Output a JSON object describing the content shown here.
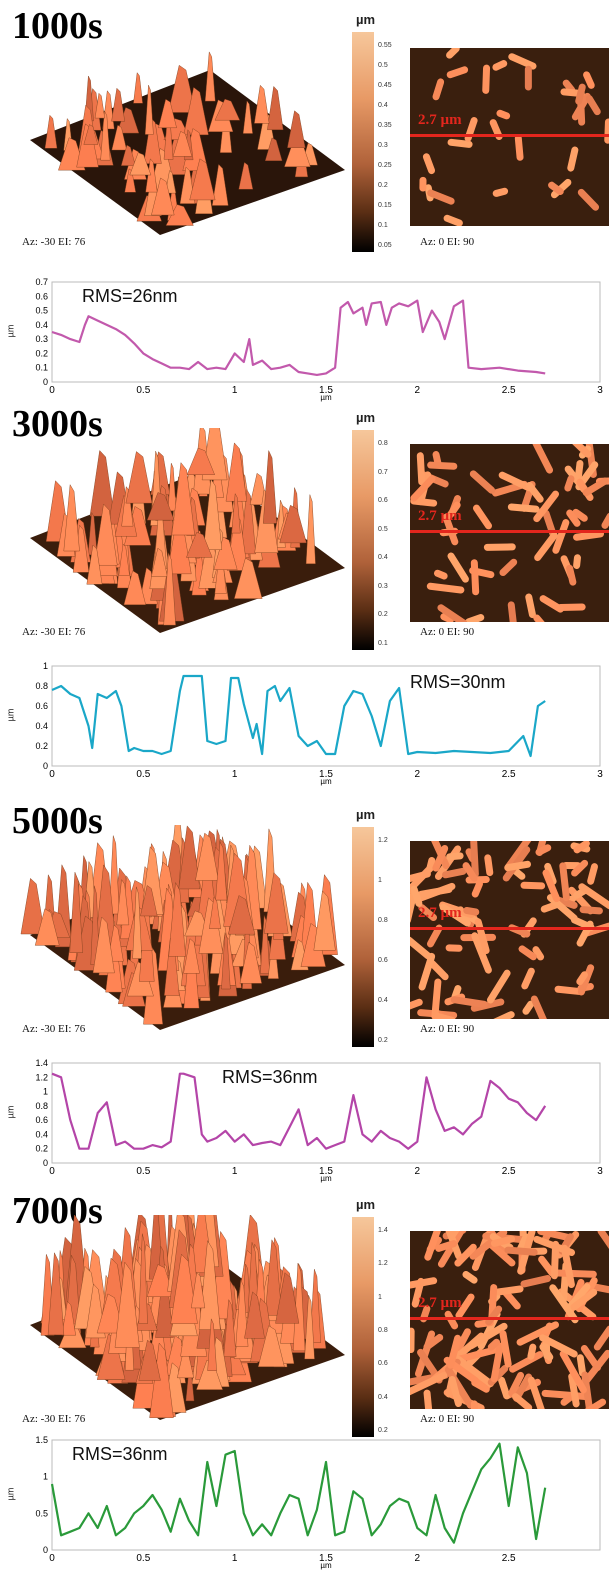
{
  "panels": [
    {
      "time": "1000s",
      "view3d": "Az: -30 EI: 76",
      "view2d": "Az: 0 EI: 90",
      "unit": "µm",
      "colorbar_ticks": [
        "0.55",
        "0.5",
        "0.45",
        "0.4",
        "0.35",
        "0.3",
        "0.25",
        "0.2",
        "0.15",
        "0.1",
        "0.05"
      ],
      "line_label": "2.7 µm",
      "rms": "RMS=26nm",
      "profile_color": "#c259ac",
      "profile": {
        "x_ticks": [
          "0",
          "0.5",
          "1",
          "1.5",
          "2",
          "2.5",
          "3"
        ],
        "y_ticks": [
          "0.7",
          "0.6",
          "0.5",
          "0.4",
          "0.3",
          "0.2",
          "0.1",
          "0"
        ],
        "xlabel": "µm",
        "ylabel": "µm",
        "ylim": [
          0,
          0.7
        ],
        "xlim": [
          0,
          3
        ]
      }
    },
    {
      "time": "3000s",
      "view3d": "Az: -30 EI: 76",
      "view2d": "Az: 0 EI: 90",
      "unit": "µm",
      "colorbar_ticks": [
        "0.8",
        "0.7",
        "0.6",
        "0.5",
        "0.4",
        "0.3",
        "0.2",
        "0.1"
      ],
      "line_label": "2.7 µm",
      "rms": "RMS=30nm",
      "profile_color": "#1aa7c8",
      "profile": {
        "x_ticks": [
          "0",
          "0.5",
          "1",
          "1.5",
          "2",
          "2.5",
          "3"
        ],
        "y_ticks": [
          "1",
          "0.8",
          "0.6",
          "0.4",
          "0.2",
          "0"
        ],
        "xlabel": "µm",
        "ylabel": "µm",
        "ylim": [
          0,
          1
        ],
        "xlim": [
          0,
          3
        ]
      }
    },
    {
      "time": "5000s",
      "view3d": "Az: -30 EI: 76",
      "view2d": "Az: 0 EI: 90",
      "unit": "µm",
      "colorbar_ticks": [
        "1.2",
        "1",
        "0.8",
        "0.6",
        "0.4",
        "0.2"
      ],
      "line_label": "2.7 µm",
      "rms": "RMS=36nm",
      "profile_color": "#b445a8",
      "profile": {
        "x_ticks": [
          "0",
          "0.5",
          "1",
          "1.5",
          "2",
          "2.5",
          "3"
        ],
        "y_ticks": [
          "1.4",
          "1.2",
          "1",
          "0.8",
          "0.6",
          "0.4",
          "0.2",
          "0"
        ],
        "xlabel": "µm",
        "ylabel": "µm",
        "ylim": [
          0,
          1.4
        ],
        "xlim": [
          0,
          3
        ]
      }
    },
    {
      "time": "7000s",
      "view3d": "Az: -30 EI: 76",
      "view2d": "Az: 0 EI: 90",
      "unit": "µm",
      "colorbar_ticks": [
        "1.4",
        "1.2",
        "1",
        "0.8",
        "0.6",
        "0.4",
        "0.2"
      ],
      "line_label": "2.7 µm",
      "rms": "RMS=36nm",
      "profile_color": "#2a9a3a",
      "profile": {
        "x_ticks": [
          "0",
          "0.5",
          "1",
          "1.5",
          "2",
          "2.5"
        ],
        "y_ticks": [
          "1.5",
          "1",
          "0.5",
          "0"
        ],
        "xlabel": "µm",
        "ylabel": "µm",
        "ylim": [
          0,
          1.5
        ],
        "xlim": [
          0,
          3
        ]
      }
    }
  ],
  "chart_data": [
    {
      "type": "line",
      "title": "RMS=26nm",
      "xlabel": "µm",
      "ylabel": "µm",
      "xlim": [
        0,
        3
      ],
      "ylim": [
        0,
        0.7
      ],
      "series": [
        {
          "x": [
            0,
            0.05,
            0.1,
            0.15,
            0.18,
            0.2,
            0.25,
            0.3,
            0.35,
            0.4,
            0.45,
            0.5,
            0.55,
            0.6,
            0.65,
            0.7,
            0.75,
            0.8,
            0.85,
            0.9,
            0.95,
            1.0,
            1.05,
            1.08,
            1.1,
            1.15,
            1.2,
            1.25,
            1.3,
            1.35,
            1.4,
            1.45,
            1.5,
            1.55,
            1.58,
            1.62,
            1.65,
            1.7,
            1.72,
            1.75,
            1.8,
            1.83,
            1.86,
            1.9,
            1.95,
            2.0,
            2.03,
            2.08,
            2.12,
            2.15,
            2.2,
            2.25,
            2.28,
            2.35,
            2.45,
            2.55,
            2.65,
            2.7
          ],
          "y": [
            0.35,
            0.33,
            0.3,
            0.28,
            0.4,
            0.46,
            0.43,
            0.4,
            0.37,
            0.33,
            0.27,
            0.2,
            0.16,
            0.13,
            0.1,
            0.1,
            0.09,
            0.14,
            0.09,
            0.1,
            0.09,
            0.2,
            0.14,
            0.3,
            0.12,
            0.15,
            0.09,
            0.1,
            0.12,
            0.07,
            0.06,
            0.05,
            0.06,
            0.1,
            0.52,
            0.56,
            0.48,
            0.52,
            0.4,
            0.55,
            0.56,
            0.4,
            0.52,
            0.55,
            0.53,
            0.57,
            0.35,
            0.5,
            0.42,
            0.3,
            0.53,
            0.57,
            0.1,
            0.09,
            0.1,
            0.08,
            0.07,
            0.06
          ]
        }
      ]
    },
    {
      "type": "line",
      "title": "RMS=30nm",
      "xlabel": "µm",
      "ylabel": "µm",
      "xlim": [
        0,
        3
      ],
      "ylim": [
        0,
        1
      ],
      "series": [
        {
          "x": [
            0,
            0.05,
            0.1,
            0.15,
            0.2,
            0.22,
            0.25,
            0.3,
            0.35,
            0.38,
            0.42,
            0.45,
            0.5,
            0.55,
            0.6,
            0.65,
            0.7,
            0.72,
            0.78,
            0.82,
            0.85,
            0.9,
            0.95,
            0.98,
            1.02,
            1.05,
            1.1,
            1.12,
            1.15,
            1.18,
            1.22,
            1.25,
            1.3,
            1.35,
            1.4,
            1.45,
            1.5,
            1.55,
            1.6,
            1.65,
            1.7,
            1.75,
            1.8,
            1.85,
            1.9,
            1.95,
            2.0,
            2.1,
            2.2,
            2.3,
            2.4,
            2.5,
            2.58,
            2.62,
            2.66,
            2.7
          ],
          "y": [
            0.76,
            0.8,
            0.72,
            0.68,
            0.4,
            0.18,
            0.72,
            0.68,
            0.75,
            0.6,
            0.15,
            0.18,
            0.15,
            0.15,
            0.12,
            0.15,
            0.75,
            0.9,
            0.9,
            0.9,
            0.25,
            0.22,
            0.25,
            0.88,
            0.88,
            0.62,
            0.28,
            0.42,
            0.12,
            0.75,
            0.8,
            0.65,
            0.78,
            0.3,
            0.2,
            0.25,
            0.12,
            0.12,
            0.6,
            0.75,
            0.72,
            0.5,
            0.2,
            0.65,
            0.78,
            0.12,
            0.14,
            0.13,
            0.15,
            0.14,
            0.13,
            0.15,
            0.3,
            0.1,
            0.6,
            0.65
          ]
        }
      ]
    },
    {
      "type": "line",
      "title": "RMS=36nm",
      "xlabel": "µm",
      "ylabel": "µm",
      "xlim": [
        0,
        3
      ],
      "ylim": [
        0,
        1.4
      ],
      "series": [
        {
          "x": [
            0,
            0.05,
            0.1,
            0.15,
            0.2,
            0.25,
            0.3,
            0.35,
            0.4,
            0.45,
            0.5,
            0.55,
            0.6,
            0.65,
            0.7,
            0.72,
            0.78,
            0.82,
            0.85,
            0.9,
            0.95,
            1.0,
            1.05,
            1.1,
            1.15,
            1.2,
            1.25,
            1.3,
            1.35,
            1.4,
            1.45,
            1.5,
            1.55,
            1.6,
            1.65,
            1.7,
            1.75,
            1.8,
            1.85,
            1.9,
            1.95,
            2.0,
            2.05,
            2.1,
            2.15,
            2.2,
            2.25,
            2.3,
            2.35,
            2.4,
            2.45,
            2.5,
            2.55,
            2.6,
            2.65,
            2.7
          ],
          "y": [
            1.25,
            1.2,
            0.6,
            0.2,
            0.2,
            0.7,
            0.85,
            0.25,
            0.3,
            0.2,
            0.2,
            0.25,
            0.22,
            0.3,
            1.25,
            1.25,
            1.2,
            0.4,
            0.3,
            0.35,
            0.45,
            0.3,
            0.4,
            0.25,
            0.28,
            0.3,
            0.25,
            0.5,
            0.75,
            0.25,
            0.35,
            0.2,
            0.25,
            0.3,
            0.95,
            0.4,
            0.3,
            0.45,
            0.35,
            0.3,
            0.2,
            0.3,
            1.2,
            0.75,
            0.45,
            0.5,
            0.4,
            0.55,
            0.65,
            1.15,
            1.05,
            0.9,
            0.85,
            0.7,
            0.6,
            0.8
          ]
        }
      ]
    },
    {
      "type": "line",
      "title": "RMS=36nm",
      "xlabel": "µm",
      "ylabel": "µm",
      "xlim": [
        0,
        3
      ],
      "ylim": [
        0,
        1.5
      ],
      "series": [
        {
          "x": [
            0,
            0.05,
            0.1,
            0.15,
            0.2,
            0.25,
            0.3,
            0.35,
            0.4,
            0.45,
            0.5,
            0.55,
            0.6,
            0.65,
            0.7,
            0.75,
            0.8,
            0.85,
            0.9,
            0.95,
            1.0,
            1.05,
            1.1,
            1.15,
            1.2,
            1.25,
            1.3,
            1.35,
            1.4,
            1.45,
            1.5,
            1.55,
            1.6,
            1.65,
            1.7,
            1.75,
            1.8,
            1.85,
            1.9,
            1.95,
            2.0,
            2.05,
            2.1,
            2.15,
            2.2,
            2.25,
            2.3,
            2.35,
            2.4,
            2.45,
            2.5,
            2.55,
            2.6,
            2.65,
            2.7
          ],
          "y": [
            0.9,
            0.2,
            0.25,
            0.3,
            0.5,
            0.3,
            0.6,
            0.2,
            0.3,
            0.5,
            0.6,
            0.75,
            0.55,
            0.25,
            0.7,
            0.4,
            0.2,
            1.2,
            0.6,
            1.3,
            1.35,
            0.5,
            0.2,
            0.35,
            0.2,
            0.5,
            0.75,
            0.7,
            0.2,
            0.55,
            1.2,
            0.2,
            0.25,
            0.8,
            0.7,
            0.2,
            0.35,
            0.6,
            0.7,
            0.65,
            0.3,
            0.2,
            0.75,
            0.3,
            0.1,
            0.5,
            0.8,
            1.1,
            1.25,
            1.45,
            0.6,
            1.4,
            1.05,
            0.15,
            0.85
          ]
        }
      ]
    }
  ]
}
